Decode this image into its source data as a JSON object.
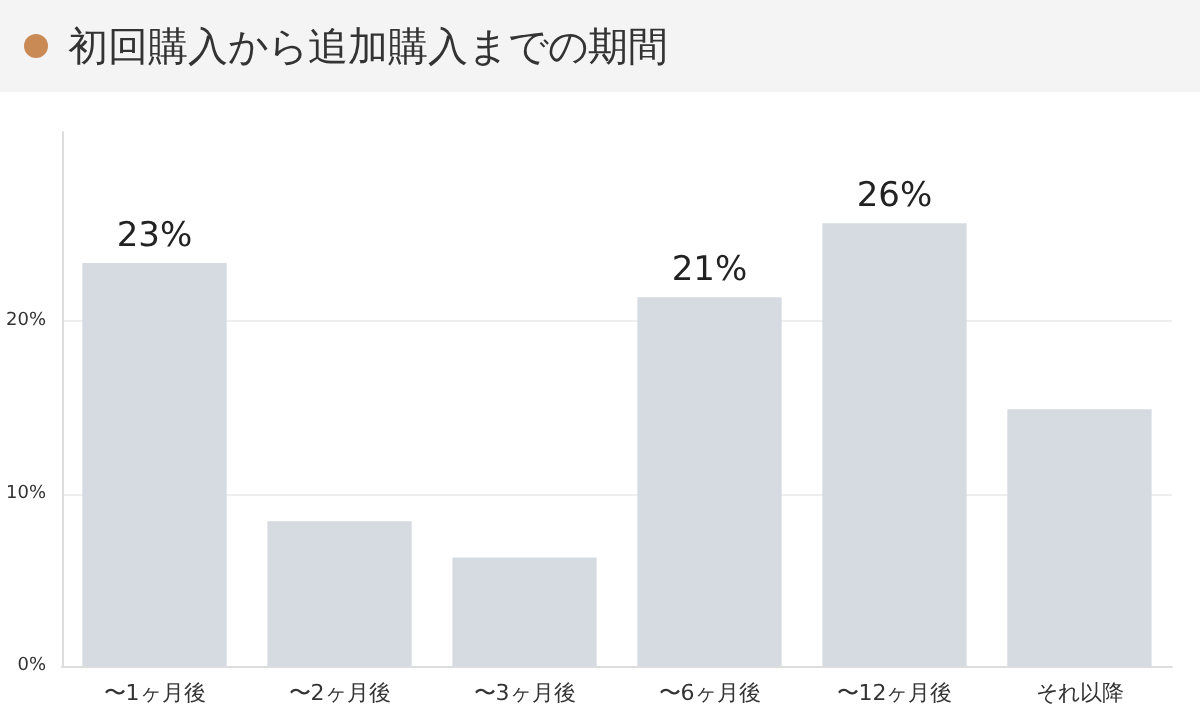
{
  "chart_data": {
    "type": "bar",
    "title": "初回購入から追加購入までの期間",
    "categories": [
      "〜1ヶ月後",
      "〜2ヶ月後",
      "〜3ヶ月後",
      "〜6ヶ月後",
      "〜12ヶ月後",
      "それ以降"
    ],
    "values": [
      23.4,
      8.4,
      6.3,
      21.4,
      25.7,
      14.9
    ],
    "value_labels": [
      "23%",
      null,
      null,
      "21%",
      "26%",
      null
    ],
    "color": "#d5dbe1",
    "ylim": [
      0,
      31
    ],
    "yticks": [
      {
        "value": 0,
        "label": "0%"
      },
      {
        "value": 10,
        "label": "10%"
      },
      {
        "value": 20,
        "label": "20%"
      }
    ],
    "grid": "y"
  }
}
